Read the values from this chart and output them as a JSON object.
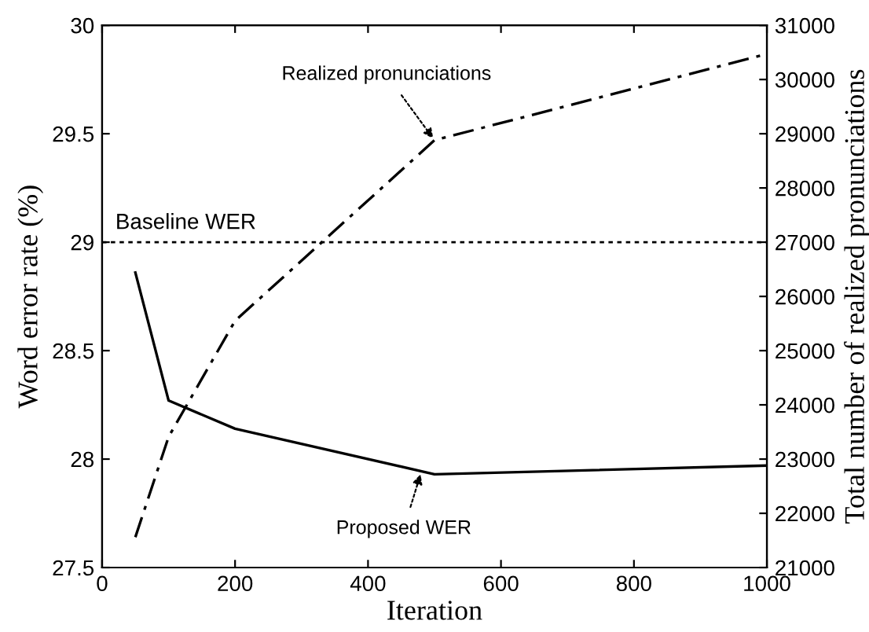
{
  "chart_data": {
    "type": "line",
    "xlabel": "Iteration",
    "ylabel": "Word error rate (%)",
    "y2label": "Total number of realized pronunciations",
    "x": [
      50,
      100,
      200,
      500,
      1000
    ],
    "series": [
      {
        "color": "#000000",
        "line_style": "solid",
        "values": [
          28.86,
          28.27,
          28.14,
          27.93,
          27.97
        ]
      },
      {
        "color": "#000000",
        "line_style": "dashdot",
        "axis": "y2",
        "values": [
          21560,
          23410,
          25550,
          28880,
          30470
        ]
      }
    ],
    "xlim": [
      0,
      1000
    ],
    "xticks": [
      0,
      200,
      400,
      600,
      800,
      1000
    ],
    "ylim": [
      27.5,
      30
    ],
    "yticks": [
      27.5,
      28,
      28.5,
      29,
      29.5,
      30
    ],
    "y2lim": [
      21000,
      31000
    ],
    "y2ticks": [
      21000,
      22000,
      23000,
      24000,
      25000,
      26000,
      27000,
      28000,
      29000,
      30000,
      31000
    ],
    "ref_lines": [
      {
        "axis": "y",
        "value": 29,
        "label": "Baseline WER",
        "color": "#000000",
        "line_style": "dotted"
      }
    ],
    "annotations": [
      {
        "text": "Realized pronunciations",
        "x": 500,
        "y": 29.47
      },
      {
        "text": "Proposed WER",
        "x": 480,
        "y": 27.94
      }
    ],
    "grid": false,
    "legend": false,
    "marker": "none"
  }
}
